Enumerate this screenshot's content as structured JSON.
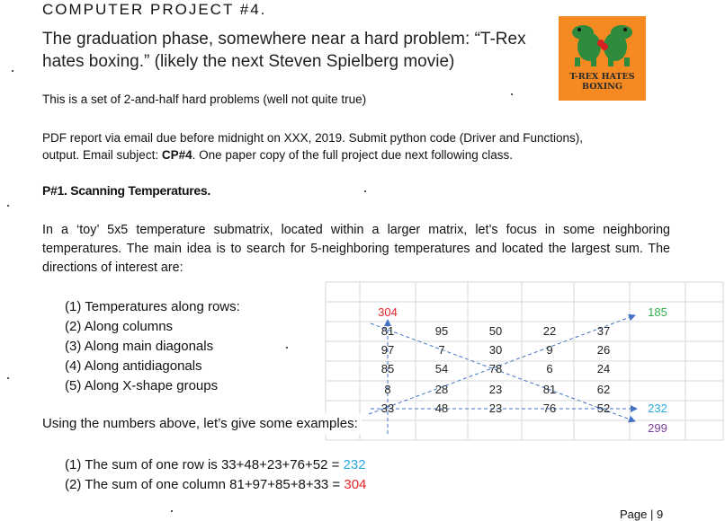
{
  "header": {
    "title": "COMPUTER PROJECT #4.",
    "intro_line1": "The graduation phase, somewhere near a hard problem: “T-Rex",
    "intro_line2": "hates boxing.”  (likely the next Steven Spielberg movie)",
    "subtitle": "This is a set of 2-and-half hard problems (well not quite true)"
  },
  "logo": {
    "line1": "T-REX HATES",
    "line2": "BOXING"
  },
  "submission": {
    "line1": "PDF report via email due before midnight on XXX, 2019.  Submit python code (Driver and Functions),",
    "line2_pre": "output. Email subject: ",
    "line2_bold": "CP#4",
    "line2_post": ".  One paper copy of the full project due next following class."
  },
  "problem1": {
    "title": "P#1. Scanning Temperatures.",
    "paragraph": "In a ‘toy’ 5x5 temperature submatrix, located within a larger matrix, let’s focus in some neighboring temperatures. The main idea is to search for 5-neighboring temperatures and located the largest sum. The directions of interest are:",
    "directions": [
      "(1) Temperatures along rows:",
      "(2) Along columns",
      "(3) Along main diagonals",
      "(4) Along antidiagonals",
      "(5) Along X-shape groups"
    ],
    "examples_intro": "Using the numbers above, let’s give some examples:",
    "examples": [
      {
        "text": "(1) The sum of one row is 33+48+23+76+52 = ",
        "value": "232"
      },
      {
        "text": "(2) The sum of one column 81+97+85+8+33 = ",
        "value": "304"
      }
    ]
  },
  "matrix": {
    "rows": [
      [
        "81",
        "95",
        "50",
        "22",
        "37"
      ],
      [
        "97",
        "7",
        "30",
        "9",
        "26"
      ],
      [
        "85",
        "54",
        "78",
        "6",
        "24"
      ],
      [
        "8",
        "28",
        "23",
        "81",
        "62"
      ],
      [
        "33",
        "48",
        "23",
        "76",
        "52"
      ]
    ],
    "column_sum": "304",
    "antidiagonal_sum": "185",
    "row_sum": "232",
    "diagonal_sum": "299"
  },
  "colors": {
    "red": "#e8242b",
    "green": "#2fb24a",
    "blue": "#2aa8e0",
    "purple": "#7b3c99",
    "arrow": "#4472c4",
    "grid": "#d7d7d7",
    "logo_bg": "#f58a22"
  },
  "footer": {
    "page": "Page | 9"
  }
}
